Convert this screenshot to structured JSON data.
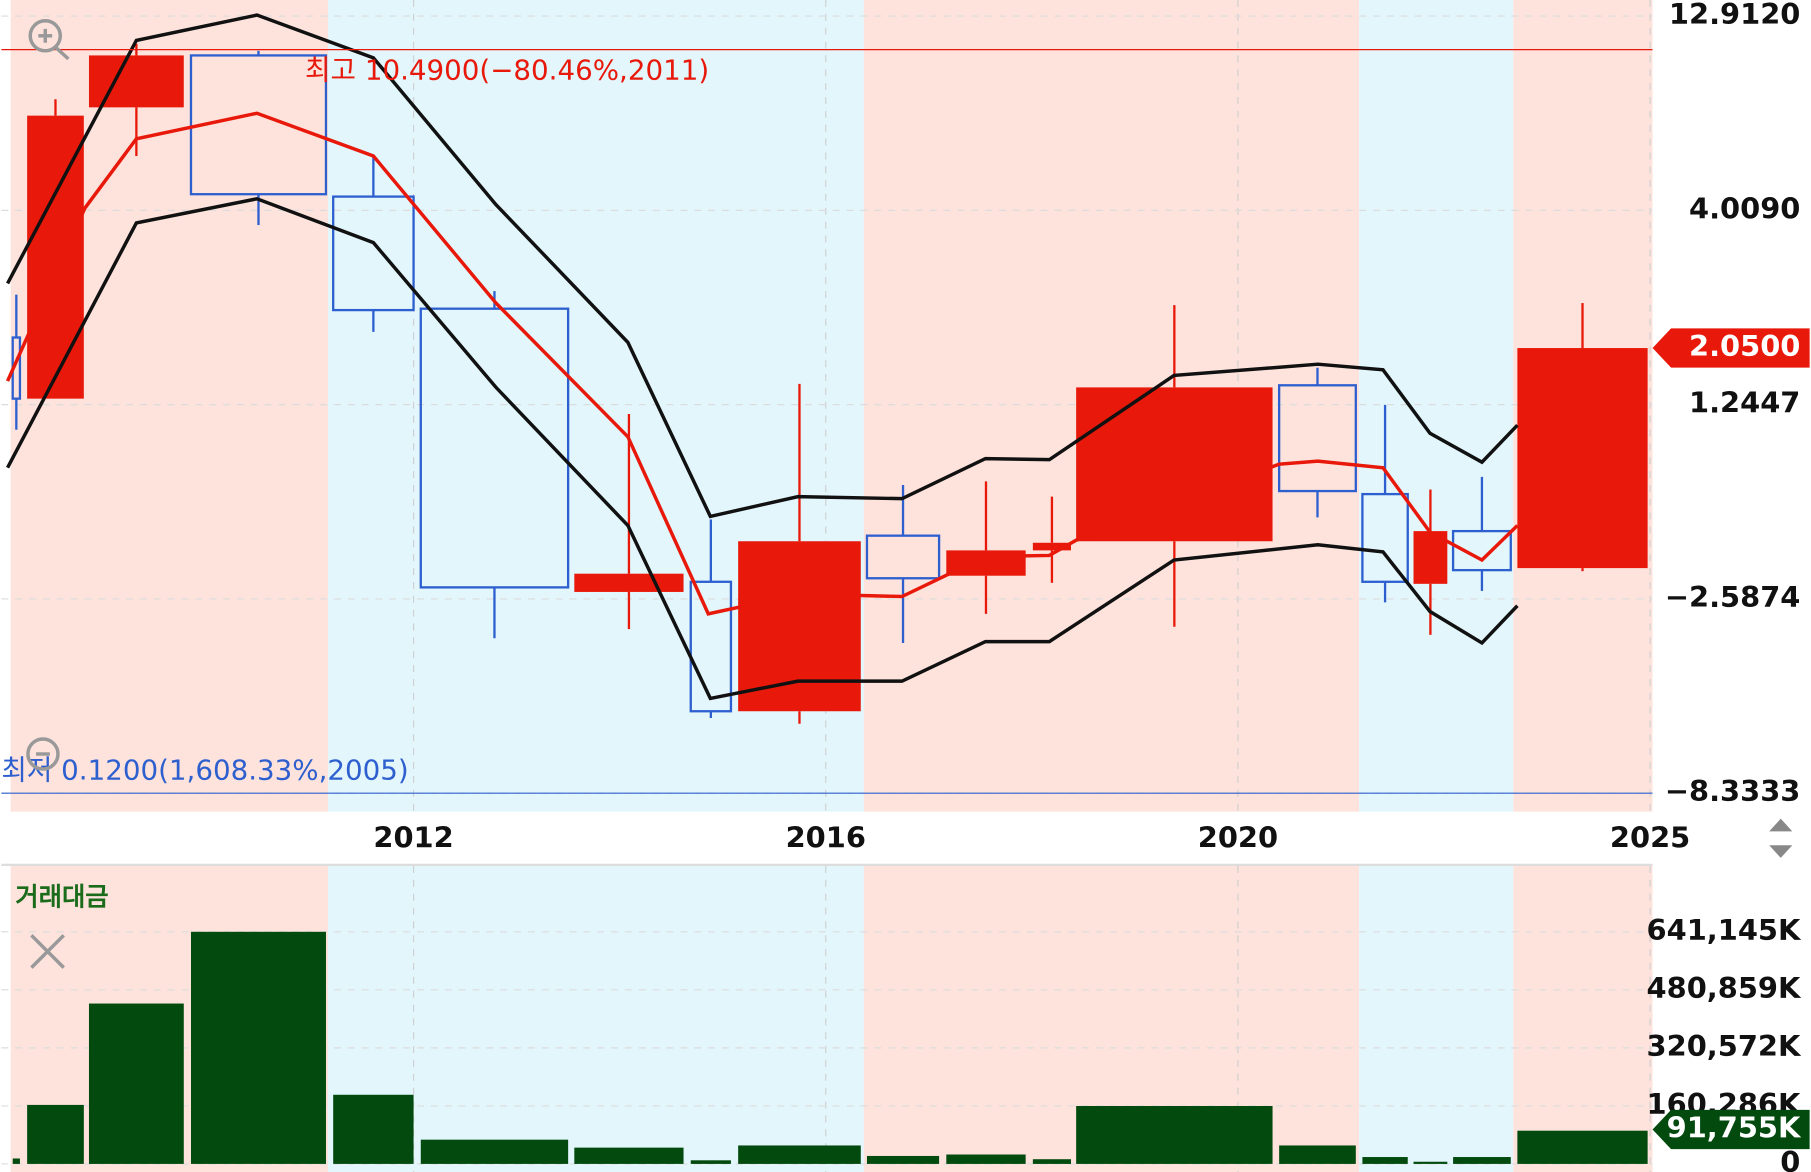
{
  "chart_data": [
    {
      "type": "candlestick",
      "x": [
        [
          2008.11,
          2008.18
        ],
        [
          2008.25,
          2008.8
        ],
        [
          2008.85,
          2009.77
        ],
        [
          2009.84,
          2011.15
        ],
        [
          2011.22,
          2012.0
        ],
        [
          2012.07,
          2013.5
        ],
        [
          2013.56,
          2014.62
        ],
        [
          2014.69,
          2015.08
        ],
        [
          2015.15,
          2016.34
        ],
        [
          2016.4,
          2017.1
        ],
        [
          2017.17,
          2017.94
        ],
        [
          2018.01,
          2018.38
        ],
        [
          2018.43,
          2020.42
        ],
        [
          2020.5,
          2021.43
        ],
        [
          2021.51,
          2022.06
        ],
        [
          2022.13,
          2022.54
        ],
        [
          2022.61,
          2023.31
        ],
        [
          2023.39,
          2024.97
        ]
      ],
      "open": [
        2.2,
        1.33,
        8.73,
        11.11,
        4.64,
        2.61,
        -2.45,
        -2.25,
        -5.91,
        -1.34,
        -2.13,
        -1.63,
        -1.45,
        1.52,
        -0.52,
        -2.29,
        -1.25,
        -1.98
      ],
      "high": [
        2.81,
        9.1,
        11.64,
        11.32,
        6.5,
        2.86,
        1.06,
        -1.02,
        1.54,
        -0.34,
        -0.27,
        -0.57,
        2.66,
        1.77,
        1.24,
        -0.43,
        -0.18,
        2.69
      ],
      "low": [
        0.75,
        1.33,
        6.5,
        3.8,
        2.28,
        -3.75,
        -3.48,
        -6.11,
        -6.28,
        -3.89,
        -3.03,
        -2.27,
        -3.41,
        -0.98,
        -2.69,
        -3.65,
        -2.43,
        -2.04
      ],
      "close": [
        1.33,
        8.35,
        11.11,
        4.75,
        2.59,
        -2.36,
        -2.09,
        -5.91,
        -1.45,
        -2.18,
        -1.63,
        -1.48,
        1.49,
        -0.46,
        -2.25,
        -1.25,
        -2.02,
        2.05
      ],
      "up_color": "#e8190a",
      "down_color": "#2e5fcf",
      "lines": [
        {
          "color": "#111111",
          "x": [
            2008.06,
            2009.31,
            2010.48,
            2011.61,
            2012.8,
            2014.08,
            2014.88,
            2015.73,
            2016.74,
            2017.55,
            2018.17,
            2019.38,
            2020.97,
            2021.76,
            2022.33,
            2022.96,
            2023.39
          ],
          "values": [
            2.97,
            11.8,
            12.96,
            11.0,
            4.27,
            2.13,
            -0.96,
            -0.57,
            -0.61,
            0.18,
            0.16,
            1.66,
            1.82,
            1.74,
            0.68,
            0.11,
            0.84
          ]
        },
        {
          "color": "#111111",
          "x": [
            2008.06,
            2009.31,
            2010.48,
            2011.61,
            2012.8,
            2014.08,
            2014.88,
            2015.73,
            2016.74,
            2017.55,
            2018.17,
            2019.38,
            2020.97,
            2021.76,
            2022.33,
            2022.96,
            2023.39
          ],
          "values": [
            0.0,
            3.83,
            4.54,
            3.55,
            1.49,
            -1.14,
            -5.53,
            -5.02,
            -5.02,
            -3.85,
            -3.85,
            -1.82,
            -1.52,
            -1.66,
            -2.96,
            -3.89,
            -2.79
          ]
        },
        {
          "color": "#e8190a",
          "x": [
            2008.06,
            2008.81,
            2009.31,
            2010.48,
            2011.61,
            2012.8,
            2014.08,
            2014.86,
            2015.73,
            2016.34,
            2016.74,
            2017.55,
            2018.17,
            2018.43,
            2020.5,
            2020.97,
            2021.76,
            2022.33,
            2022.96,
            2023.39
          ],
          "values": [
            1.58,
            4.11,
            7.29,
            8.46,
            6.5,
            2.69,
            0.61,
            -3.03,
            -2.5,
            -2.52,
            -2.54,
            -1.75,
            -1.73,
            -1.43,
            0.07,
            0.13,
            0.0,
            -1.27,
            -1.82,
            -1.14
          ]
        }
      ],
      "xlim": [
        2008,
        2025.03
      ],
      "xticks": [
        2012,
        2016,
        2020,
        2025
      ],
      "ylim": [
        -8.78,
        13.65
      ],
      "yticks": [
        {
          "value": -8.3333,
          "label": "−8.3333"
        },
        {
          "value": -2.5874,
          "label": "−2.5874"
        },
        1.2447,
        {
          "value": 4.009,
          "label": "4.0090"
        },
        {
          "value": 12.912,
          "label": "12.9120"
        }
      ],
      "last_price": {
        "value": 2.05,
        "label": "2.0500"
      },
      "annotations": [
        {
          "text": "최고 10.4900(−80.46%,2011)",
          "color": "#e8190a"
        },
        {
          "text": "최저 0.1200(1,608.33%,2005)",
          "color": "#2e5fcf"
        }
      ],
      "shaded_regions": [
        {
          "x": [
            2008.09,
            2011.17
          ],
          "color": "#fde3dc"
        },
        {
          "x": [
            2011.17,
            2016.37
          ],
          "color": "#e2f6fc"
        },
        {
          "x": [
            2016.37,
            2021.47
          ],
          "color": "#fde3dc"
        },
        {
          "x": [
            2021.47,
            2023.34
          ],
          "color": "#e2f6fc"
        },
        {
          "x": [
            2023.34,
            2025.03
          ],
          "color": "#fde3dc"
        }
      ],
      "grid": true
    },
    {
      "type": "bar",
      "title": "거래대금",
      "values": [
        15000,
        163000,
        443000,
        641145,
        191000,
        67000,
        45000,
        10000,
        51000,
        22000,
        26000,
        13000,
        160000,
        51000,
        19000,
        6000,
        19000,
        91755
      ],
      "value_labels": [
        null,
        null,
        null,
        null,
        null,
        null,
        null,
        null,
        null,
        null,
        null,
        null,
        null,
        null,
        null,
        null,
        null,
        "91,755K"
      ],
      "color": "#034a0e",
      "ylim": [
        0,
        791000
      ],
      "yticks": [
        0,
        {
          "value": 160286,
          "label": "160,286K"
        },
        {
          "value": 320572,
          "label": "320,572K"
        },
        {
          "value": 480859,
          "label": "480,859K"
        },
        {
          "value": 641145,
          "label": "641,145K"
        }
      ],
      "grid": true
    }
  ]
}
